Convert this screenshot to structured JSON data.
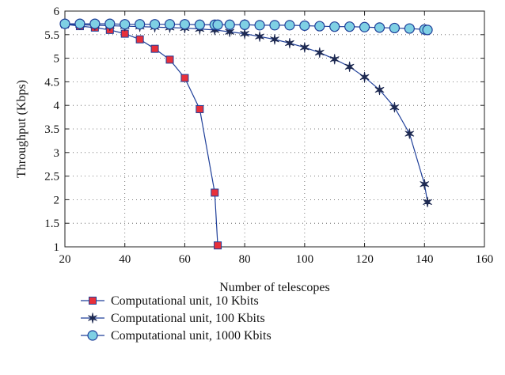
{
  "chart_data": {
    "type": "line",
    "xlabel": "Number of telescopes",
    "ylabel": "Throughput (Kbps)",
    "xlim": [
      20,
      160
    ],
    "ylim": [
      1,
      6
    ],
    "xticks": [
      20,
      40,
      60,
      80,
      100,
      120,
      140,
      160
    ],
    "yticks": [
      1,
      1.5,
      2,
      2.5,
      3,
      3.5,
      4,
      4.5,
      5,
      5.5,
      6
    ],
    "xtick_labels": [
      "20",
      "40",
      "60",
      "80",
      "100",
      "120",
      "140",
      "160"
    ],
    "ytick_labels": [
      "1",
      "1.5",
      "2",
      "2.5",
      "3",
      "3.5",
      "4",
      "4.5",
      "5",
      "5.5",
      "6"
    ],
    "grid": true,
    "legend_position": "bottom-left, below plot",
    "series": [
      {
        "name": "Computational unit, 10 Kbits",
        "marker": "square",
        "line_color": "#1f3f99",
        "marker_color": "#e8303a",
        "x": [
          20,
          25,
          30,
          35,
          40,
          45,
          50,
          55,
          60,
          65,
          70,
          71
        ],
        "y": [
          5.72,
          5.68,
          5.65,
          5.6,
          5.52,
          5.4,
          5.2,
          4.97,
          4.58,
          3.92,
          2.15,
          1.03
        ]
      },
      {
        "name": "Computational unit, 100 Kbits",
        "marker": "star",
        "line_color": "#1f3f99",
        "marker_color": "#1e2a52",
        "x": [
          20,
          25,
          30,
          35,
          40,
          45,
          50,
          55,
          60,
          65,
          70,
          75,
          80,
          85,
          90,
          95,
          100,
          105,
          110,
          115,
          120,
          125,
          130,
          135,
          140,
          141
        ],
        "y": [
          5.72,
          5.71,
          5.7,
          5.69,
          5.68,
          5.67,
          5.66,
          5.65,
          5.64,
          5.62,
          5.6,
          5.56,
          5.52,
          5.46,
          5.4,
          5.32,
          5.23,
          5.12,
          4.98,
          4.82,
          4.6,
          4.33,
          3.96,
          3.4,
          2.33,
          1.95
        ]
      },
      {
        "name": "Computational unit, 1000 Kbits",
        "marker": "circle",
        "line_color": "#1f3f99",
        "marker_color": "#7fd0e4",
        "x": [
          20,
          25,
          30,
          35,
          40,
          45,
          50,
          55,
          60,
          65,
          70,
          71,
          75,
          80,
          85,
          90,
          95,
          100,
          105,
          110,
          115,
          120,
          125,
          130,
          135,
          140,
          141
        ],
        "y": [
          5.73,
          5.73,
          5.73,
          5.73,
          5.72,
          5.72,
          5.72,
          5.72,
          5.72,
          5.71,
          5.71,
          5.71,
          5.71,
          5.71,
          5.7,
          5.7,
          5.7,
          5.69,
          5.68,
          5.67,
          5.67,
          5.66,
          5.65,
          5.64,
          5.63,
          5.61,
          5.6
        ]
      }
    ]
  }
}
